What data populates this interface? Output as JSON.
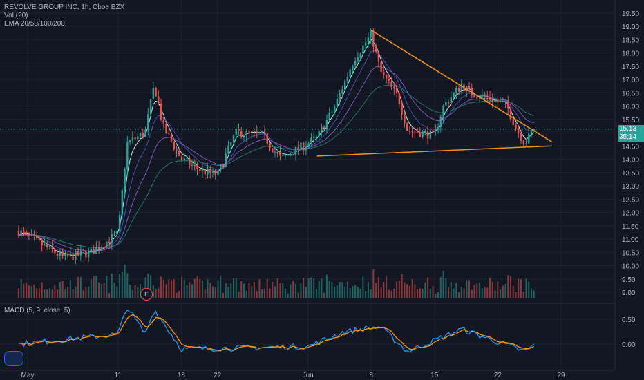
{
  "header": {
    "title": "REVOLVE GROUP INC, 1h, Cboe BZX",
    "volume_label": "Vol (20)",
    "ema_label": "EMA 20/50/100/200",
    "macd_label": "MACD (5, 9, close, 5)"
  },
  "price_tag": "15.13",
  "countdown": "35:14",
  "earnings_badge": "E",
  "colors": {
    "background": "#131722",
    "up": "#26a69a",
    "down": "#ef5350",
    "trendline": "#f7931a",
    "ema20": "#b2ebf2",
    "ema50": "#3f51b5",
    "ema100": "#7e57c2",
    "ema200": "#1f7a6f",
    "macd": "#2196f3",
    "signal": "#ff9800"
  },
  "chart_data": [
    {
      "type": "candlestick",
      "title": "REVOLVE GROUP INC, 1h, Cboe BZX",
      "x_ticks": [
        "May",
        "11",
        "18",
        "22",
        "Jun",
        "8",
        "15",
        "22",
        "29"
      ],
      "y_ticks": [
        "19.50",
        "19.00",
        "18.50",
        "18.00",
        "17.50",
        "17.00",
        "16.50",
        "16.00",
        "15.50",
        "15.00",
        "14.50",
        "14.00",
        "13.50",
        "13.00",
        "12.50",
        "12.00",
        "11.50",
        "11.00",
        "10.50",
        "10.00",
        "9.50",
        "9.00"
      ],
      "ylim": [
        8.75,
        19.75
      ],
      "grid": true,
      "overlays": [
        "EMA 20",
        "EMA 50",
        "EMA 100",
        "EMA 200",
        "volume"
      ],
      "price_anchors": [
        {
          "x": "Apr 30",
          "y": 11.3
        },
        {
          "x": "May 5",
          "y": 10.3
        },
        {
          "x": "May 8",
          "y": 10.5
        },
        {
          "x": "May 11",
          "y": 11.2
        },
        {
          "x": "May 12",
          "y": 14.6
        },
        {
          "x": "May 14",
          "y": 15.0
        },
        {
          "x": "May 15",
          "y": 16.8
        },
        {
          "x": "May 16",
          "y": 15.2
        },
        {
          "x": "May 18",
          "y": 14.0
        },
        {
          "x": "May 20",
          "y": 13.6
        },
        {
          "x": "May 22",
          "y": 13.4
        },
        {
          "x": "May 24",
          "y": 15.0
        },
        {
          "x": "May 27",
          "y": 14.9
        },
        {
          "x": "May 29",
          "y": 14.0
        },
        {
          "x": "Jun 2",
          "y": 14.8
        },
        {
          "x": "Jun 4",
          "y": 16.0
        },
        {
          "x": "Jun 6",
          "y": 17.7
        },
        {
          "x": "Jun 8",
          "y": 18.7
        },
        {
          "x": "Jun 9",
          "y": 17.3
        },
        {
          "x": "Jun 11",
          "y": 16.3
        },
        {
          "x": "Jun 12",
          "y": 15.1
        },
        {
          "x": "Jun 15",
          "y": 14.9
        },
        {
          "x": "Jun 16",
          "y": 16.0
        },
        {
          "x": "Jun 18",
          "y": 16.8
        },
        {
          "x": "Jun 19",
          "y": 16.5
        },
        {
          "x": "Jun 21",
          "y": 16.3
        },
        {
          "x": "Jun 23",
          "y": 16.0
        },
        {
          "x": "Jun 24",
          "y": 15.2
        },
        {
          "x": "Jun 25",
          "y": 14.6
        },
        {
          "x": "Jun 26",
          "y": 15.13
        }
      ],
      "trendlines": [
        {
          "from": {
            "x": "Jun 8",
            "y": 18.85
          },
          "to": {
            "x": "Jun 28",
            "y": 14.65
          }
        },
        {
          "from": {
            "x": "Jun 2",
            "y": 14.12
          },
          "to": {
            "x": "Jun 28",
            "y": 14.5
          }
        }
      ],
      "last_price": 15.13
    },
    {
      "type": "line",
      "title": "MACD (5, 9, close, 5)",
      "y_ticks": [
        "0.50",
        "0.00"
      ],
      "series": [
        {
          "name": "MACD"
        },
        {
          "name": "Signal"
        }
      ],
      "anchors": [
        {
          "x": "Apr 30",
          "y": 0.0
        },
        {
          "x": "May 11",
          "y": 0.2
        },
        {
          "x": "May 12",
          "y": 0.75
        },
        {
          "x": "May 14",
          "y": 0.2
        },
        {
          "x": "May 15",
          "y": 0.7
        },
        {
          "x": "May 18",
          "y": -0.1
        },
        {
          "x": "Jun 1",
          "y": -0.05
        },
        {
          "x": "Jun 5",
          "y": 0.25
        },
        {
          "x": "Jun 9",
          "y": 0.35
        },
        {
          "x": "Jun 12",
          "y": -0.15
        },
        {
          "x": "Jun 18",
          "y": 0.3
        },
        {
          "x": "Jun 25",
          "y": -0.15
        },
        {
          "x": "Jun 26",
          "y": -0.02
        }
      ]
    }
  ]
}
